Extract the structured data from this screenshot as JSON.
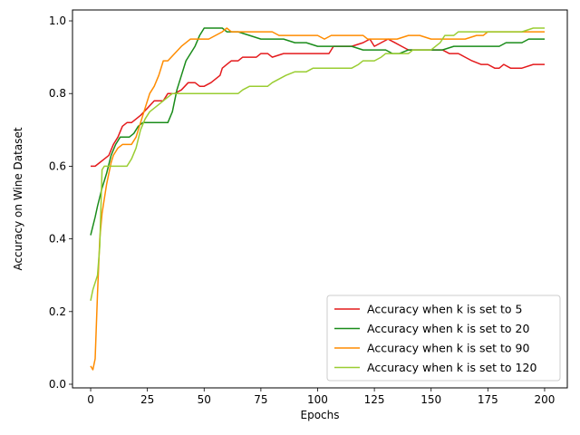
{
  "chart_data": {
    "type": "line",
    "title": "",
    "xlabel": "Epochs",
    "ylabel": "Accuracy on Wine Dataset",
    "xlim": [
      -8,
      210
    ],
    "ylim": [
      -0.01,
      1.03
    ],
    "xticks": [
      0,
      25,
      50,
      75,
      100,
      125,
      150,
      175,
      200
    ],
    "yticks": [
      0.0,
      0.2,
      0.4,
      0.6,
      0.8,
      1.0
    ],
    "xtick_labels": [
      "0",
      "25",
      "50",
      "75",
      "100",
      "125",
      "150",
      "175",
      "200"
    ],
    "ytick_labels": [
      "0.0",
      "0.2",
      "0.4",
      "0.6",
      "0.8",
      "1.0"
    ],
    "grid": false,
    "legend_position": "lower-right",
    "series": [
      {
        "name": "Accuracy when k is set to 5",
        "color": "#e41a1c",
        "points": [
          [
            0,
            0.6
          ],
          [
            2,
            0.6
          ],
          [
            4,
            0.61
          ],
          [
            6,
            0.62
          ],
          [
            8,
            0.63
          ],
          [
            10,
            0.66
          ],
          [
            12,
            0.68
          ],
          [
            14,
            0.71
          ],
          [
            16,
            0.72
          ],
          [
            18,
            0.72
          ],
          [
            20,
            0.73
          ],
          [
            22,
            0.74
          ],
          [
            25,
            0.76
          ],
          [
            28,
            0.78
          ],
          [
            30,
            0.78
          ],
          [
            32,
            0.78
          ],
          [
            34,
            0.8
          ],
          [
            37,
            0.8
          ],
          [
            40,
            0.81
          ],
          [
            43,
            0.83
          ],
          [
            46,
            0.83
          ],
          [
            48,
            0.82
          ],
          [
            50,
            0.82
          ],
          [
            53,
            0.83
          ],
          [
            55,
            0.84
          ],
          [
            57,
            0.85
          ],
          [
            58,
            0.87
          ],
          [
            60,
            0.88
          ],
          [
            62,
            0.89
          ],
          [
            65,
            0.89
          ],
          [
            67,
            0.9
          ],
          [
            70,
            0.9
          ],
          [
            73,
            0.9
          ],
          [
            75,
            0.91
          ],
          [
            78,
            0.91
          ],
          [
            80,
            0.9
          ],
          [
            85,
            0.91
          ],
          [
            90,
            0.91
          ],
          [
            95,
            0.91
          ],
          [
            100,
            0.91
          ],
          [
            105,
            0.91
          ],
          [
            107,
            0.93
          ],
          [
            110,
            0.93
          ],
          [
            115,
            0.93
          ],
          [
            120,
            0.94
          ],
          [
            123,
            0.95
          ],
          [
            125,
            0.93
          ],
          [
            128,
            0.94
          ],
          [
            131,
            0.95
          ],
          [
            134,
            0.94
          ],
          [
            137,
            0.93
          ],
          [
            140,
            0.92
          ],
          [
            145,
            0.92
          ],
          [
            150,
            0.92
          ],
          [
            155,
            0.92
          ],
          [
            158,
            0.91
          ],
          [
            162,
            0.91
          ],
          [
            165,
            0.9
          ],
          [
            168,
            0.89
          ],
          [
            172,
            0.88
          ],
          [
            175,
            0.88
          ],
          [
            178,
            0.87
          ],
          [
            180,
            0.87
          ],
          [
            182,
            0.88
          ],
          [
            185,
            0.87
          ],
          [
            190,
            0.87
          ],
          [
            195,
            0.88
          ],
          [
            200,
            0.88
          ]
        ]
      },
      {
        "name": "Accuracy when k is set to 20",
        "color": "#1a8c1a",
        "points": [
          [
            0,
            0.41
          ],
          [
            2,
            0.46
          ],
          [
            3,
            0.49
          ],
          [
            5,
            0.54
          ],
          [
            7,
            0.58
          ],
          [
            9,
            0.63
          ],
          [
            11,
            0.66
          ],
          [
            13,
            0.68
          ],
          [
            15,
            0.68
          ],
          [
            17,
            0.68
          ],
          [
            19,
            0.69
          ],
          [
            21,
            0.71
          ],
          [
            23,
            0.72
          ],
          [
            25,
            0.72
          ],
          [
            28,
            0.72
          ],
          [
            30,
            0.72
          ],
          [
            32,
            0.72
          ],
          [
            34,
            0.72
          ],
          [
            36,
            0.75
          ],
          [
            38,
            0.81
          ],
          [
            40,
            0.85
          ],
          [
            42,
            0.89
          ],
          [
            44,
            0.91
          ],
          [
            46,
            0.93
          ],
          [
            48,
            0.96
          ],
          [
            50,
            0.98
          ],
          [
            52,
            0.98
          ],
          [
            55,
            0.98
          ],
          [
            58,
            0.98
          ],
          [
            60,
            0.97
          ],
          [
            65,
            0.97
          ],
          [
            70,
            0.96
          ],
          [
            75,
            0.95
          ],
          [
            80,
            0.95
          ],
          [
            85,
            0.95
          ],
          [
            90,
            0.94
          ],
          [
            95,
            0.94
          ],
          [
            100,
            0.93
          ],
          [
            105,
            0.93
          ],
          [
            110,
            0.93
          ],
          [
            115,
            0.93
          ],
          [
            120,
            0.92
          ],
          [
            125,
            0.92
          ],
          [
            130,
            0.92
          ],
          [
            133,
            0.91
          ],
          [
            136,
            0.91
          ],
          [
            140,
            0.92
          ],
          [
            145,
            0.92
          ],
          [
            150,
            0.92
          ],
          [
            155,
            0.92
          ],
          [
            160,
            0.93
          ],
          [
            165,
            0.93
          ],
          [
            170,
            0.93
          ],
          [
            175,
            0.93
          ],
          [
            180,
            0.93
          ],
          [
            183,
            0.94
          ],
          [
            186,
            0.94
          ],
          [
            190,
            0.94
          ],
          [
            193,
            0.95
          ],
          [
            196,
            0.95
          ],
          [
            200,
            0.95
          ]
        ]
      },
      {
        "name": "Accuracy when k is set to 90",
        "color": "#ff8c00",
        "points": [
          [
            0,
            0.05
          ],
          [
            1,
            0.04
          ],
          [
            2,
            0.07
          ],
          [
            3,
            0.25
          ],
          [
            4,
            0.4
          ],
          [
            5,
            0.47
          ],
          [
            6,
            0.51
          ],
          [
            7,
            0.55
          ],
          [
            8,
            0.58
          ],
          [
            9,
            0.61
          ],
          [
            10,
            0.63
          ],
          [
            12,
            0.65
          ],
          [
            14,
            0.66
          ],
          [
            16,
            0.66
          ],
          [
            18,
            0.66
          ],
          [
            20,
            0.68
          ],
          [
            22,
            0.72
          ],
          [
            24,
            0.76
          ],
          [
            26,
            0.8
          ],
          [
            28,
            0.82
          ],
          [
            30,
            0.85
          ],
          [
            32,
            0.89
          ],
          [
            34,
            0.89
          ],
          [
            37,
            0.91
          ],
          [
            40,
            0.93
          ],
          [
            42,
            0.94
          ],
          [
            44,
            0.95
          ],
          [
            48,
            0.95
          ],
          [
            50,
            0.95
          ],
          [
            52,
            0.95
          ],
          [
            55,
            0.96
          ],
          [
            58,
            0.97
          ],
          [
            60,
            0.98
          ],
          [
            62,
            0.97
          ],
          [
            65,
            0.97
          ],
          [
            70,
            0.97
          ],
          [
            75,
            0.97
          ],
          [
            78,
            0.97
          ],
          [
            80,
            0.97
          ],
          [
            83,
            0.96
          ],
          [
            86,
            0.96
          ],
          [
            90,
            0.96
          ],
          [
            93,
            0.96
          ],
          [
            95,
            0.96
          ],
          [
            97,
            0.96
          ],
          [
            100,
            0.96
          ],
          [
            103,
            0.95
          ],
          [
            106,
            0.96
          ],
          [
            110,
            0.96
          ],
          [
            115,
            0.96
          ],
          [
            120,
            0.96
          ],
          [
            122,
            0.95
          ],
          [
            125,
            0.95
          ],
          [
            130,
            0.95
          ],
          [
            135,
            0.95
          ],
          [
            140,
            0.96
          ],
          [
            145,
            0.96
          ],
          [
            150,
            0.95
          ],
          [
            155,
            0.95
          ],
          [
            160,
            0.95
          ],
          [
            165,
            0.95
          ],
          [
            170,
            0.96
          ],
          [
            173,
            0.96
          ],
          [
            175,
            0.97
          ],
          [
            177,
            0.97
          ],
          [
            180,
            0.97
          ],
          [
            185,
            0.97
          ],
          [
            190,
            0.97
          ],
          [
            195,
            0.97
          ],
          [
            200,
            0.97
          ]
        ]
      },
      {
        "name": "Accuracy when k is set to 120",
        "color": "#9acd32",
        "points": [
          [
            0,
            0.23
          ],
          [
            1,
            0.26
          ],
          [
            3,
            0.3
          ],
          [
            4,
            0.38
          ],
          [
            5,
            0.59
          ],
          [
            6,
            0.6
          ],
          [
            8,
            0.6
          ],
          [
            10,
            0.6
          ],
          [
            12,
            0.6
          ],
          [
            14,
            0.6
          ],
          [
            16,
            0.6
          ],
          [
            18,
            0.62
          ],
          [
            20,
            0.65
          ],
          [
            22,
            0.7
          ],
          [
            24,
            0.73
          ],
          [
            26,
            0.75
          ],
          [
            28,
            0.76
          ],
          [
            30,
            0.77
          ],
          [
            32,
            0.78
          ],
          [
            34,
            0.79
          ],
          [
            36,
            0.8
          ],
          [
            40,
            0.8
          ],
          [
            45,
            0.8
          ],
          [
            50,
            0.8
          ],
          [
            55,
            0.8
          ],
          [
            60,
            0.8
          ],
          [
            65,
            0.8
          ],
          [
            67,
            0.81
          ],
          [
            70,
            0.82
          ],
          [
            75,
            0.82
          ],
          [
            78,
            0.82
          ],
          [
            80,
            0.83
          ],
          [
            83,
            0.84
          ],
          [
            86,
            0.85
          ],
          [
            90,
            0.86
          ],
          [
            95,
            0.86
          ],
          [
            98,
            0.87
          ],
          [
            100,
            0.87
          ],
          [
            105,
            0.87
          ],
          [
            110,
            0.87
          ],
          [
            115,
            0.87
          ],
          [
            118,
            0.88
          ],
          [
            120,
            0.89
          ],
          [
            125,
            0.89
          ],
          [
            128,
            0.9
          ],
          [
            130,
            0.91
          ],
          [
            135,
            0.91
          ],
          [
            140,
            0.91
          ],
          [
            142,
            0.92
          ],
          [
            145,
            0.92
          ],
          [
            150,
            0.92
          ],
          [
            152,
            0.93
          ],
          [
            154,
            0.94
          ],
          [
            156,
            0.96
          ],
          [
            160,
            0.96
          ],
          [
            162,
            0.97
          ],
          [
            165,
            0.97
          ],
          [
            170,
            0.97
          ],
          [
            175,
            0.97
          ],
          [
            180,
            0.97
          ],
          [
            185,
            0.97
          ],
          [
            190,
            0.97
          ],
          [
            195,
            0.98
          ],
          [
            200,
            0.98
          ]
        ]
      }
    ]
  }
}
